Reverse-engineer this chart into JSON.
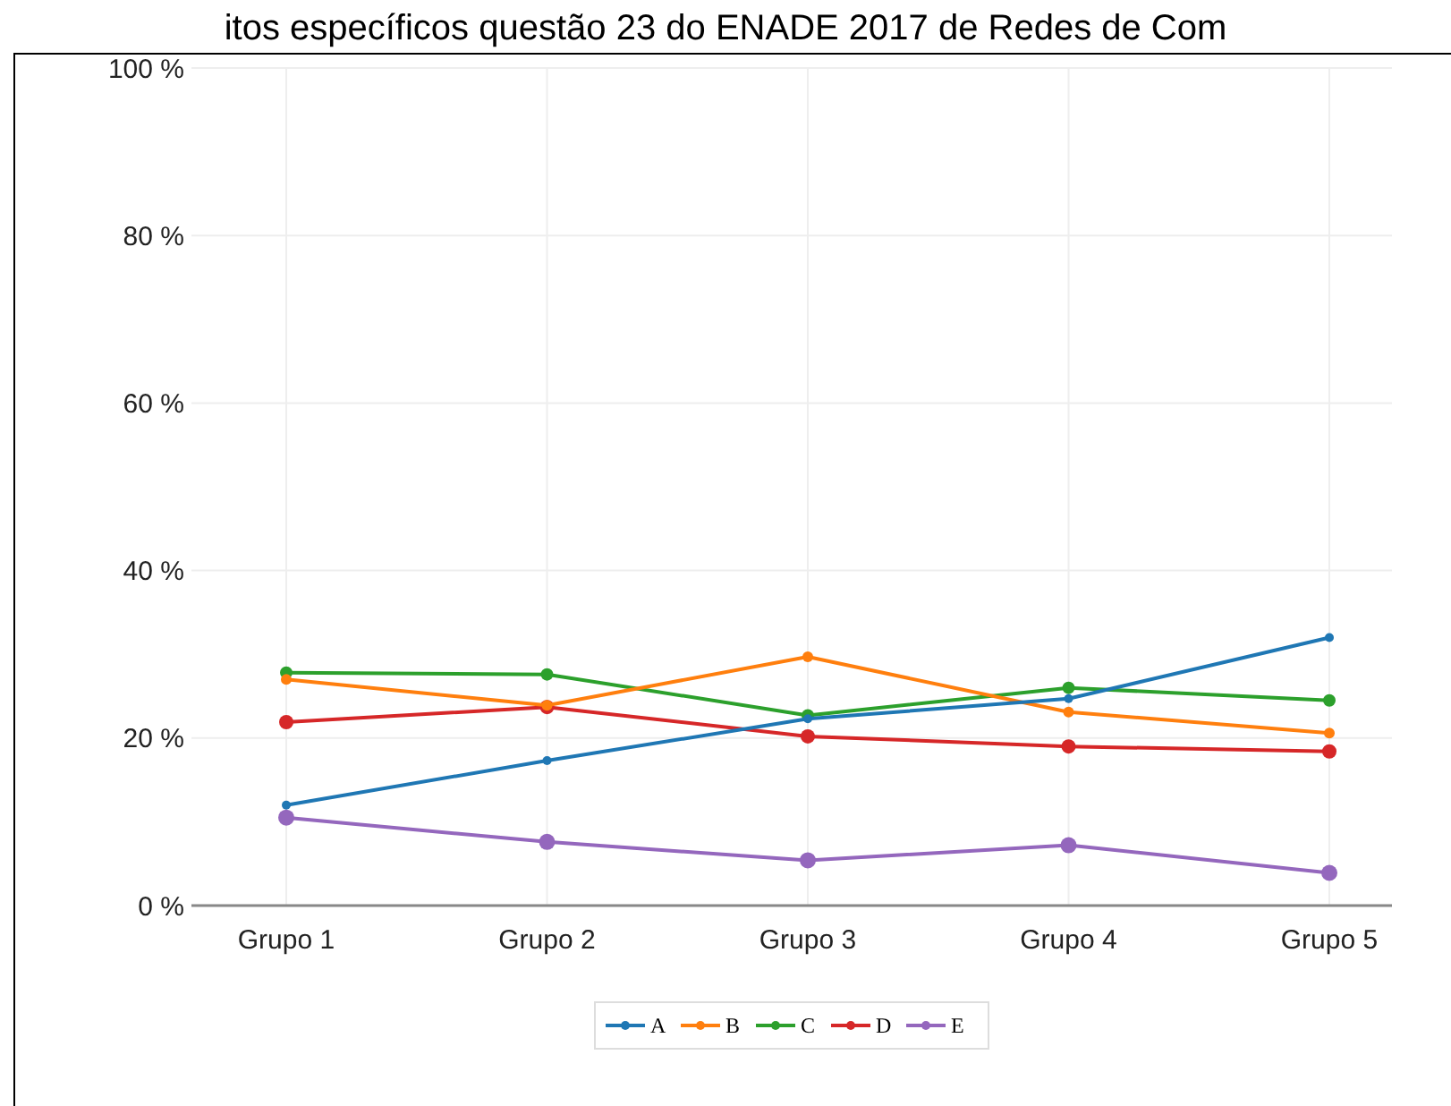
{
  "chart_data": {
    "type": "line",
    "title": "itos específicos questão 23 do ENADE 2017 de Redes de Com",
    "categories": [
      "Grupo 1",
      "Grupo 2",
      "Grupo 3",
      "Grupo 4",
      "Grupo 5"
    ],
    "series": [
      {
        "name": "A",
        "color": "#1f77b4",
        "values": [
          12.0,
          17.3,
          22.3,
          24.7,
          32.0
        ]
      },
      {
        "name": "B",
        "color": "#ff7f0e",
        "values": [
          27.0,
          23.9,
          29.7,
          23.1,
          20.6
        ]
      },
      {
        "name": "C",
        "color": "#2ca02c",
        "values": [
          27.8,
          27.6,
          22.7,
          26.0,
          24.5
        ]
      },
      {
        "name": "D",
        "color": "#d62728",
        "values": [
          21.9,
          23.7,
          20.2,
          19.0,
          18.4
        ]
      },
      {
        "name": "E",
        "color": "#9467bd",
        "values": [
          10.5,
          7.6,
          5.4,
          7.2,
          3.9
        ]
      }
    ],
    "ylim": [
      0,
      100
    ],
    "yticks": [
      {
        "value": 0,
        "label": "0 %"
      },
      {
        "value": 20,
        "label": "20 %"
      },
      {
        "value": 40,
        "label": "40 %"
      },
      {
        "value": 60,
        "label": "60 %"
      },
      {
        "value": 80,
        "label": "80 %"
      },
      {
        "value": 100,
        "label": "100 %"
      }
    ],
    "grid": true,
    "legend": "bottom",
    "marker": "circle",
    "line_style": "solid"
  }
}
